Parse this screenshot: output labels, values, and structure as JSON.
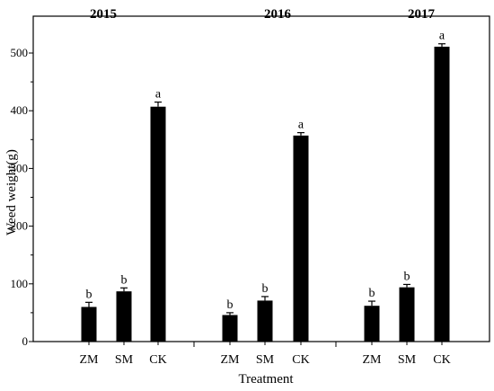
{
  "chart_data": {
    "type": "bar",
    "xlabel": "Treatment",
    "ylabel": "Weed weight(g)",
    "ylim": [
      0,
      540
    ],
    "yticks": [
      0,
      100,
      200,
      300,
      400,
      500
    ],
    "grid": false,
    "legend": "none",
    "bar_color": "#000000",
    "groups": [
      {
        "title": "2015",
        "categories": [
          "ZM",
          "SM",
          "CK"
        ],
        "values": [
          60,
          87,
          407
        ],
        "errors": [
          8,
          6,
          8
        ],
        "letters": [
          "b",
          "b",
          "a"
        ]
      },
      {
        "title": "2016",
        "categories": [
          "ZM",
          "SM",
          "CK"
        ],
        "values": [
          46,
          71,
          357
        ],
        "errors": [
          4,
          7,
          5
        ],
        "letters": [
          "b",
          "b",
          "a"
        ]
      },
      {
        "title": "2017",
        "categories": [
          "ZM",
          "SM",
          "CK"
        ],
        "values": [
          62,
          94,
          511
        ],
        "errors": [
          8,
          5,
          5
        ],
        "letters": [
          "b",
          "b",
          "a"
        ]
      }
    ]
  }
}
